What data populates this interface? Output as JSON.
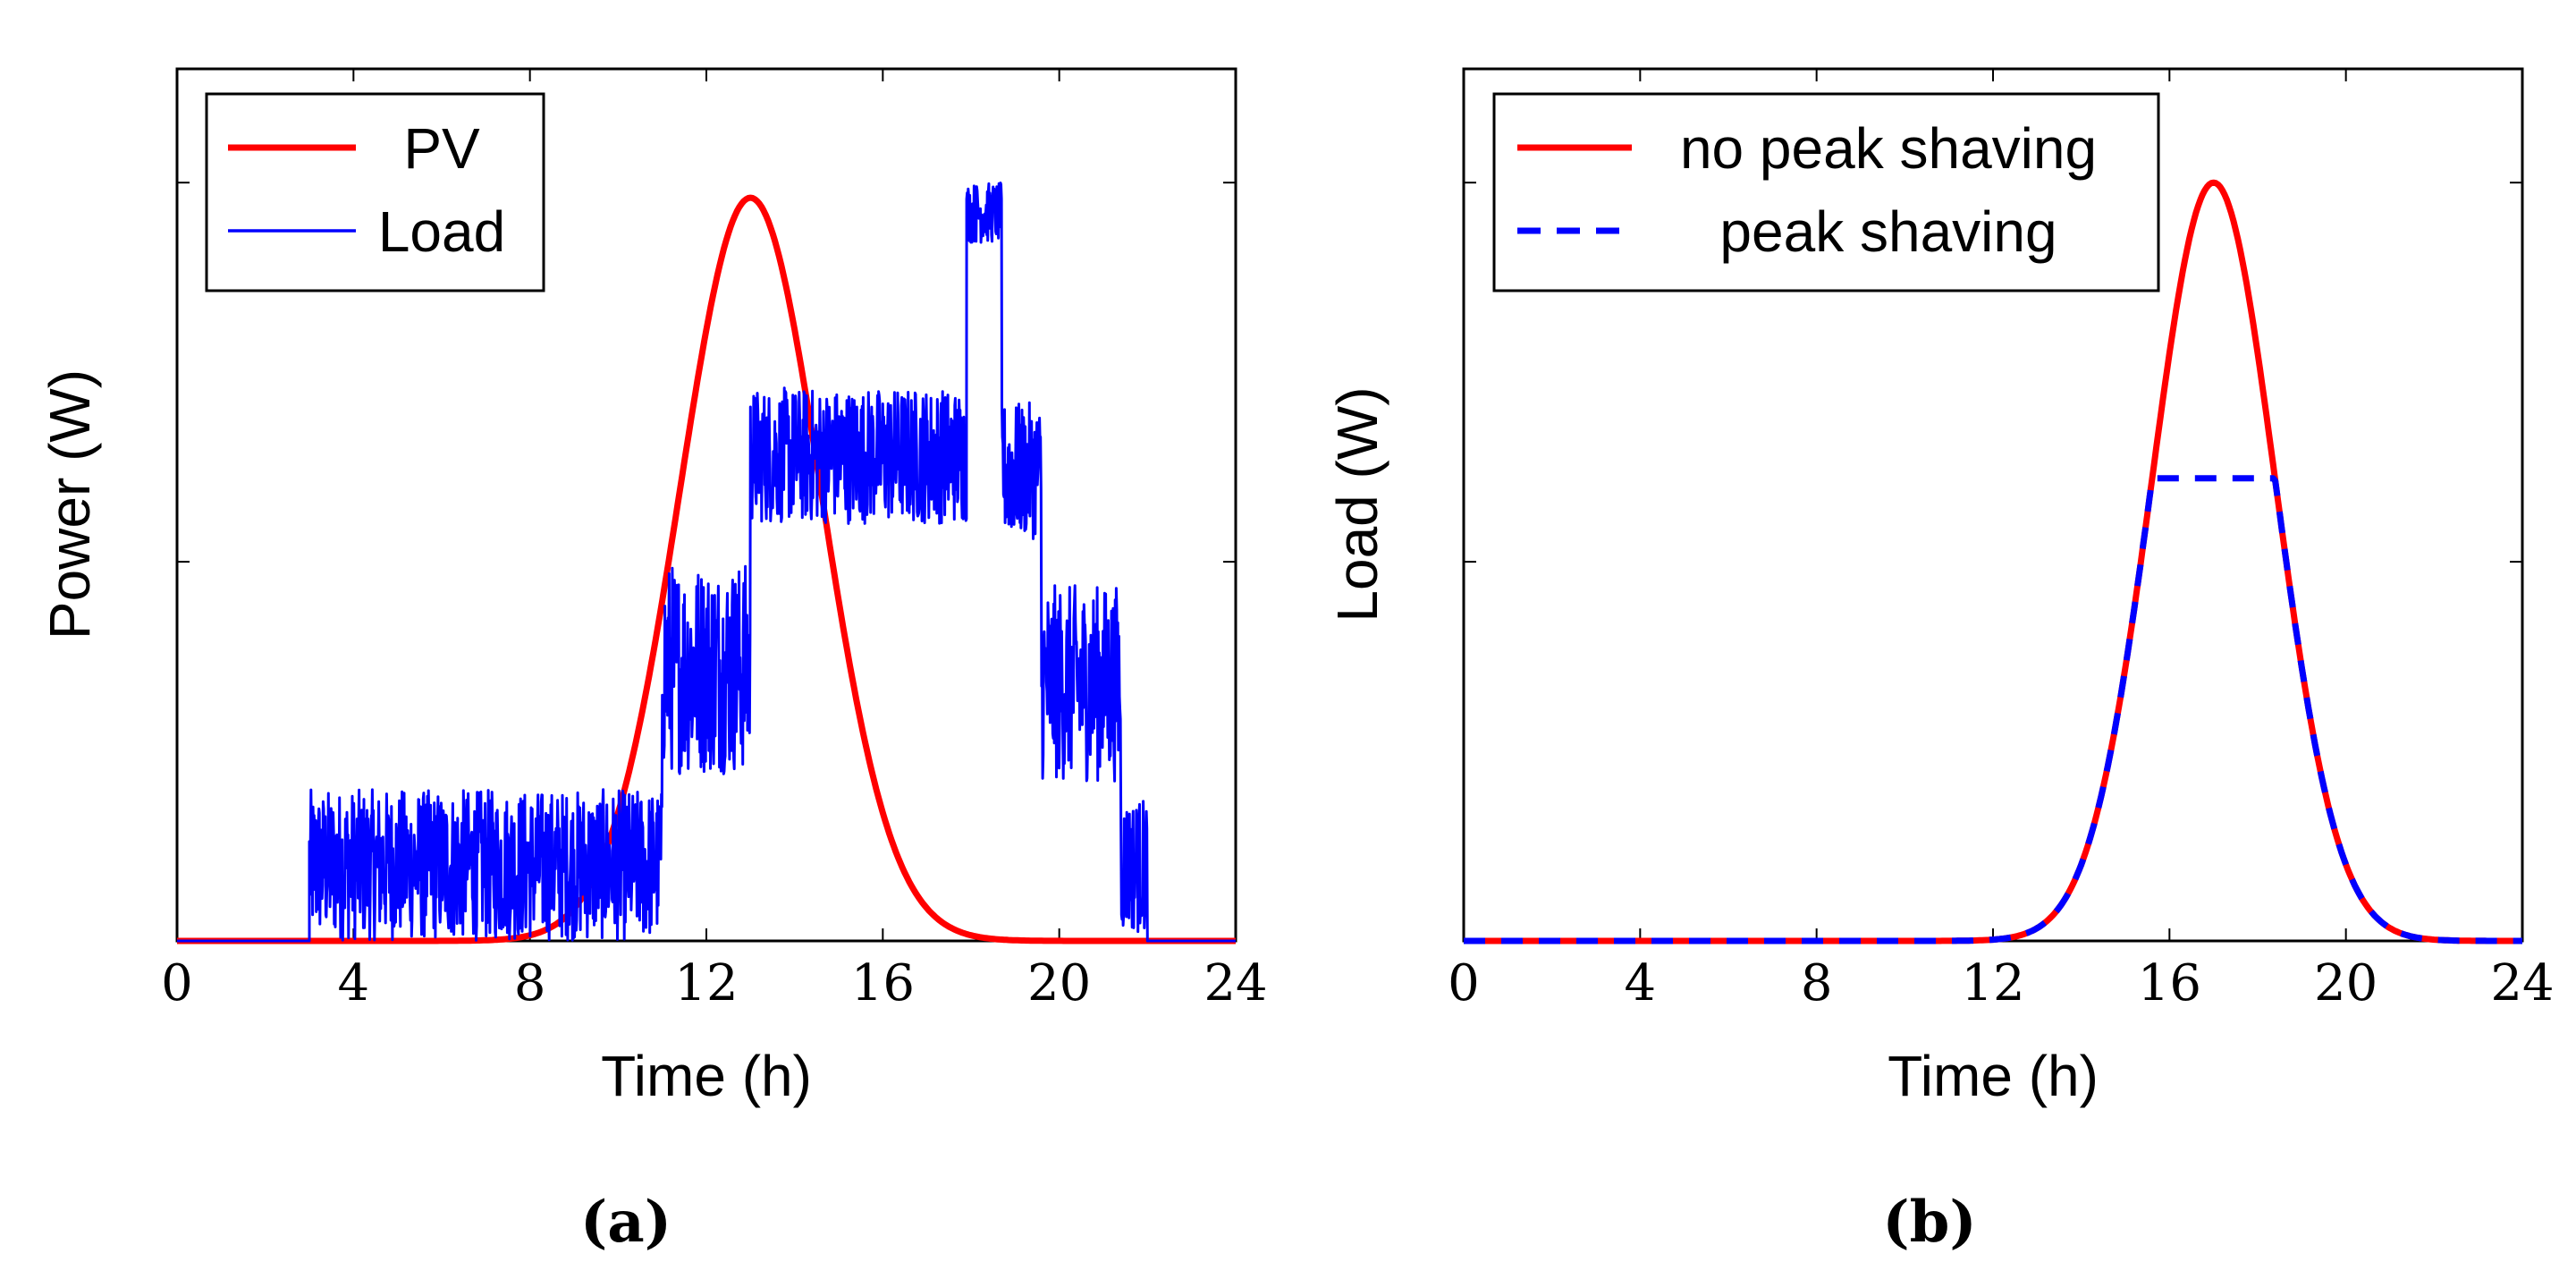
{
  "chart_data": [
    {
      "type": "line",
      "panel_label": "(a)",
      "xlabel": "Time (h)",
      "ylabel": "Power (W)",
      "xlim": [
        0,
        24
      ],
      "ylim": [
        0,
        1.15
      ],
      "xticks": [
        "0",
        "4",
        "8",
        "12",
        "16",
        "20",
        "24"
      ],
      "yticks_unlabeled": [
        0.5,
        1.0
      ],
      "grid": false,
      "legend_position": "top-left",
      "series": [
        {
          "name": "PV",
          "color": "#ff0000",
          "style": "solid",
          "shape": "gaussian",
          "peak_x": 13.0,
          "peak_y": 0.98,
          "sigma": 1.6,
          "x_range": [
            0,
            24
          ]
        },
        {
          "name": "Load",
          "color": "#0000ff",
          "style": "solid",
          "segments": [
            {
              "x": [
                0,
                3.0
              ],
              "level": 0.0,
              "amplitude": 0.0
            },
            {
              "x": [
                3.0,
                11.0
              ],
              "level": 0.1,
              "amplitude": 0.1
            },
            {
              "x": [
                11.0,
                13.0
              ],
              "level": 0.36,
              "amplitude": 0.14
            },
            {
              "x": [
                13.0,
                17.9
              ],
              "level": 0.64,
              "amplitude": 0.09
            },
            {
              "x": [
                17.9,
                18.7
              ],
              "level": 0.96,
              "amplitude": 0.04
            },
            {
              "x": [
                18.7,
                19.6
              ],
              "level": 0.62,
              "amplitude": 0.09
            },
            {
              "x": [
                19.6,
                21.4
              ],
              "level": 0.34,
              "amplitude": 0.13
            },
            {
              "x": [
                21.4,
                22.0
              ],
              "level": 0.1,
              "amplitude": 0.09
            },
            {
              "x": [
                22.0,
                24.0
              ],
              "level": 0.0,
              "amplitude": 0.0
            }
          ]
        }
      ]
    },
    {
      "type": "line",
      "panel_label": "(b)",
      "xlabel": "Time (h)",
      "ylabel": "Load (W)",
      "xlim": [
        0,
        24
      ],
      "ylim": [
        0,
        1.15
      ],
      "xticks": [
        "0",
        "4",
        "8",
        "12",
        "16",
        "20",
        "24"
      ],
      "yticks_unlabeled": [
        0.5,
        1.0
      ],
      "grid": false,
      "legend_position": "top-left",
      "series": [
        {
          "name": "no peak shaving",
          "color": "#ff0000",
          "style": "solid",
          "shape": "gaussian",
          "peak_x": 17.0,
          "peak_y": 1.0,
          "sigma": 1.4,
          "x_range": [
            0,
            24
          ]
        },
        {
          "name": "peak shaving",
          "color": "#0000ff",
          "style": "dashed",
          "shape": "gaussian_capped",
          "peak_x": 17.0,
          "peak_y": 1.0,
          "sigma": 1.4,
          "cap": 0.61,
          "x_range": [
            0,
            24
          ]
        }
      ]
    }
  ]
}
